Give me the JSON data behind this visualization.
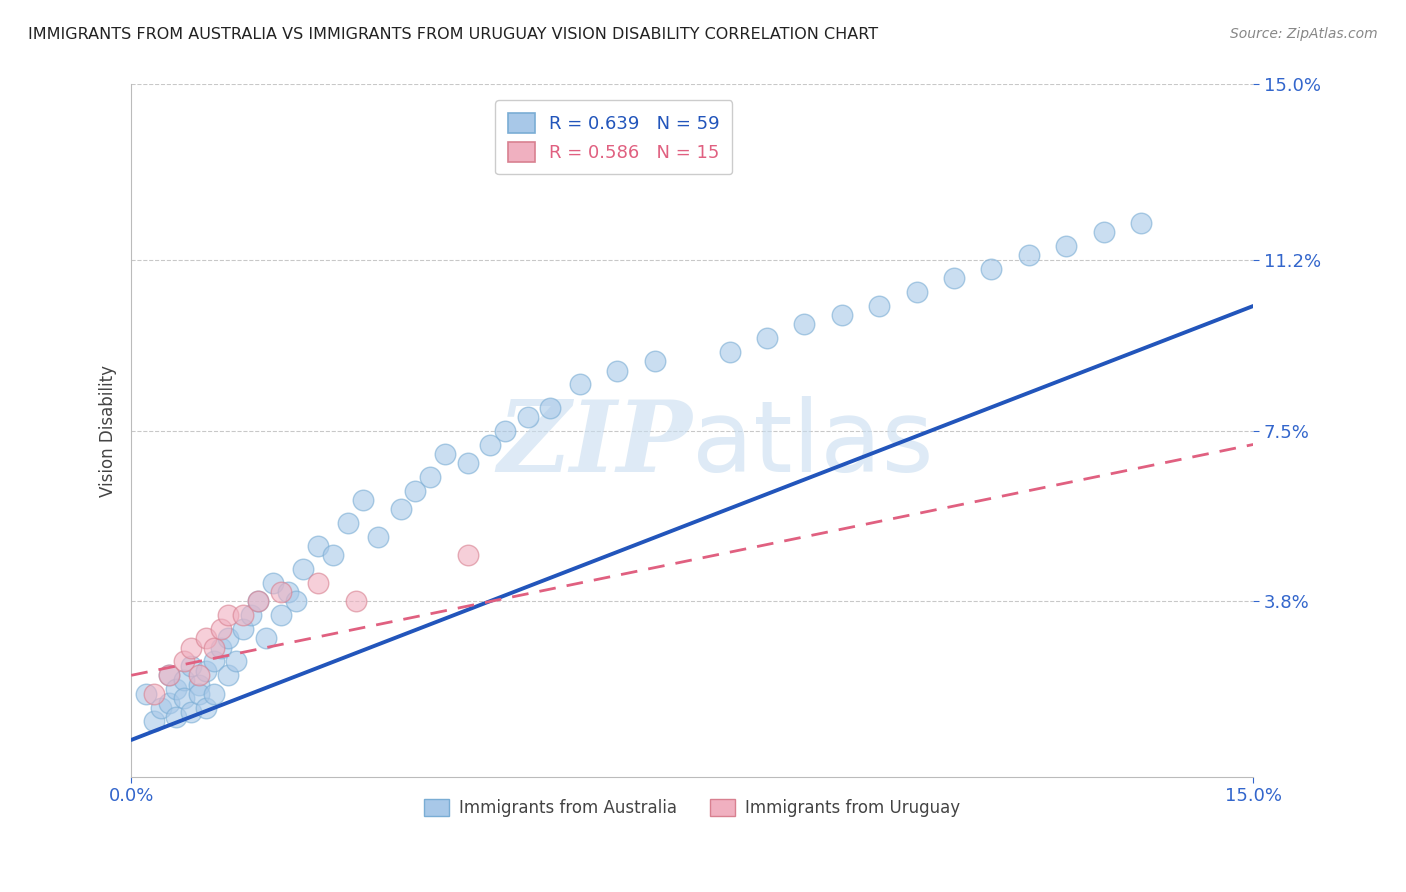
{
  "title": "IMMIGRANTS FROM AUSTRALIA VS IMMIGRANTS FROM URUGUAY VISION DISABILITY CORRELATION CHART",
  "source": "Source: ZipAtlas.com",
  "ylabel": "Vision Disability",
  "xlim": [
    0.0,
    0.15
  ],
  "ylim": [
    0.0,
    0.15
  ],
  "ytick_labels": [
    "3.8%",
    "7.5%",
    "11.2%",
    "15.0%"
  ],
  "ytick_values": [
    0.038,
    0.075,
    0.112,
    0.15
  ],
  "xtick_labels": [
    "0.0%",
    "15.0%"
  ],
  "xtick_values": [
    0.0,
    0.15
  ],
  "grid_color": "#bbbbbb",
  "background_color": "#ffffff",
  "watermark_color": "#c8ddf0",
  "aus_color": "#a8c8e8",
  "aus_edge_color": "#7aadd4",
  "aus_line_color": "#2255bb",
  "uru_color": "#f0b0c0",
  "uru_edge_color": "#d88090",
  "uru_line_color": "#e06080",
  "aus_R": 0.639,
  "aus_N": 59,
  "uru_R": 0.586,
  "uru_N": 15,
  "aus_line_x0": 0.0,
  "aus_line_y0": 0.008,
  "aus_line_x1": 0.15,
  "aus_line_y1": 0.102,
  "uru_line_x0": 0.0,
  "uru_line_y0": 0.022,
  "uru_line_x1": 0.15,
  "uru_line_y1": 0.072,
  "aus_scatter_x": [
    0.002,
    0.003,
    0.004,
    0.005,
    0.005,
    0.006,
    0.006,
    0.007,
    0.007,
    0.008,
    0.008,
    0.009,
    0.009,
    0.01,
    0.01,
    0.011,
    0.011,
    0.012,
    0.013,
    0.013,
    0.014,
    0.015,
    0.016,
    0.017,
    0.018,
    0.019,
    0.02,
    0.021,
    0.022,
    0.023,
    0.025,
    0.027,
    0.029,
    0.031,
    0.033,
    0.036,
    0.038,
    0.04,
    0.042,
    0.045,
    0.048,
    0.05,
    0.053,
    0.056,
    0.06,
    0.065,
    0.07,
    0.08,
    0.085,
    0.09,
    0.095,
    0.1,
    0.105,
    0.11,
    0.115,
    0.12,
    0.125,
    0.13,
    0.135
  ],
  "aus_scatter_y": [
    0.018,
    0.012,
    0.015,
    0.022,
    0.016,
    0.019,
    0.013,
    0.021,
    0.017,
    0.024,
    0.014,
    0.02,
    0.018,
    0.023,
    0.015,
    0.025,
    0.018,
    0.028,
    0.022,
    0.03,
    0.025,
    0.032,
    0.035,
    0.038,
    0.03,
    0.042,
    0.035,
    0.04,
    0.038,
    0.045,
    0.05,
    0.048,
    0.055,
    0.06,
    0.052,
    0.058,
    0.062,
    0.065,
    0.07,
    0.068,
    0.072,
    0.075,
    0.078,
    0.08,
    0.085,
    0.088,
    0.09,
    0.092,
    0.095,
    0.098,
    0.1,
    0.102,
    0.105,
    0.108,
    0.11,
    0.113,
    0.115,
    0.118,
    0.12
  ],
  "uru_scatter_x": [
    0.003,
    0.005,
    0.007,
    0.008,
    0.009,
    0.01,
    0.011,
    0.012,
    0.013,
    0.015,
    0.017,
    0.02,
    0.025,
    0.03,
    0.045
  ],
  "uru_scatter_y": [
    0.018,
    0.022,
    0.025,
    0.028,
    0.022,
    0.03,
    0.028,
    0.032,
    0.035,
    0.035,
    0.038,
    0.04,
    0.042,
    0.038,
    0.048
  ]
}
